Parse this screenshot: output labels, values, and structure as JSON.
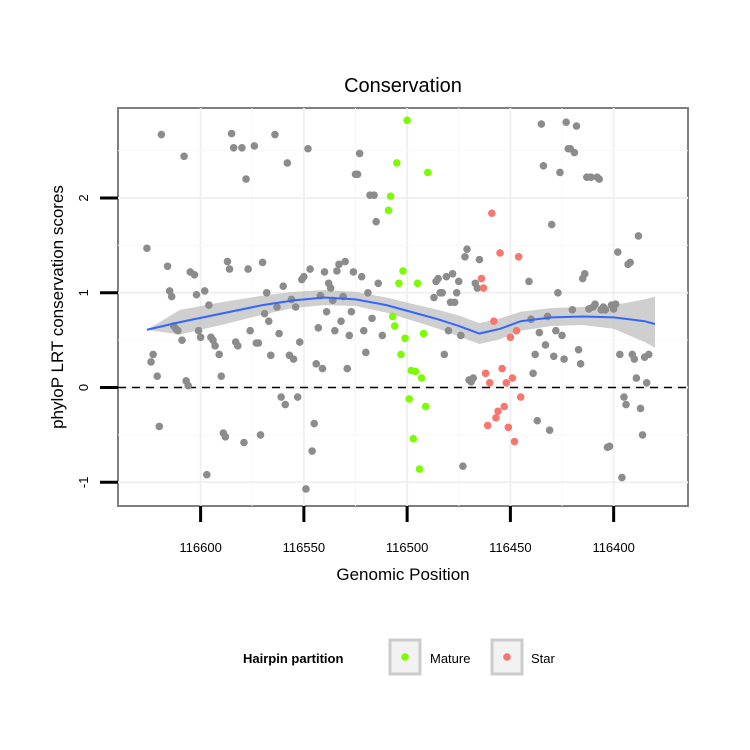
{
  "chart_data": {
    "type": "scatter",
    "title": "Conservation",
    "xlabel": "Genomic Position",
    "ylabel": "phyloP LRT conservation scores",
    "x_reversed": true,
    "xlim": [
      116640,
      116364
    ],
    "ylim": [
      -1.25,
      2.95
    ],
    "x_ticks": [
      116600,
      116550,
      116500,
      116450,
      116400
    ],
    "y_ticks": [
      -1,
      0,
      1,
      2
    ],
    "grid": true,
    "reference_line": 0,
    "legend": {
      "title": "Hairpin partition",
      "position": "bottom",
      "entries": [
        {
          "label": "Mature",
          "color": "#7cfc00"
        },
        {
          "label": "Star",
          "color": "#f8766d"
        }
      ]
    },
    "series": [
      {
        "color": "#8c8c8c",
        "points": [
          [
            116626,
            1.47
          ],
          [
            116624,
            0.27
          ],
          [
            116623,
            0.35
          ],
          [
            116621,
            0.12
          ],
          [
            116620,
            -0.41
          ],
          [
            116619,
            2.67
          ],
          [
            116616,
            1.28
          ],
          [
            116615,
            1.02
          ],
          [
            116614,
            0.96
          ],
          [
            116613,
            0.65
          ],
          [
            116612,
            0.62
          ],
          [
            116611,
            0.6
          ],
          [
            116609,
            0.5
          ],
          [
            116608,
            2.44
          ],
          [
            116607,
            0.07
          ],
          [
            116606,
            0.02
          ],
          [
            116605,
            1.22
          ],
          [
            116603,
            1.19
          ],
          [
            116602,
            0.98
          ],
          [
            116601,
            0.6
          ],
          [
            116600,
            0.53
          ],
          [
            116598,
            1.02
          ],
          [
            116597,
            -0.92
          ],
          [
            116596,
            0.87
          ],
          [
            116595,
            0.53
          ],
          [
            116594,
            0.5
          ],
          [
            116593,
            0.44
          ],
          [
            116591,
            0.35
          ],
          [
            116590,
            0.12
          ],
          [
            116589,
            -0.48
          ],
          [
            116588,
            -0.52
          ],
          [
            116587,
            1.33
          ],
          [
            116586,
            1.25
          ],
          [
            116585,
            2.68
          ],
          [
            116584,
            2.53
          ],
          [
            116583,
            0.48
          ],
          [
            116582,
            0.44
          ],
          [
            116580,
            2.53
          ],
          [
            116579,
            -0.58
          ],
          [
            116578,
            2.2
          ],
          [
            116577,
            1.25
          ],
          [
            116576,
            0.6
          ],
          [
            116574,
            2.55
          ],
          [
            116573,
            0.47
          ],
          [
            116572,
            0.47
          ],
          [
            116571,
            -0.5
          ],
          [
            116570,
            1.32
          ],
          [
            116569,
            0.78
          ],
          [
            116568,
            1.0
          ],
          [
            116567,
            0.7
          ],
          [
            116566,
            0.34
          ],
          [
            116564,
            2.67
          ],
          [
            116563,
            0.85
          ],
          [
            116562,
            0.57
          ],
          [
            116561,
            -0.1
          ],
          [
            116560,
            1.07
          ],
          [
            116559,
            -0.18
          ],
          [
            116558,
            2.37
          ],
          [
            116557,
            0.34
          ],
          [
            116556,
            0.93
          ],
          [
            116555,
            0.3
          ],
          [
            116554,
            0.85
          ],
          [
            116553,
            -0.1
          ],
          [
            116552,
            0.48
          ],
          [
            116551,
            1.14
          ],
          [
            116550,
            1.17
          ],
          [
            116549,
            -1.07
          ],
          [
            116548,
            2.52
          ],
          [
            116547,
            1.25
          ],
          [
            116546,
            -0.67
          ],
          [
            116545,
            -0.38
          ],
          [
            116544,
            0.25
          ],
          [
            116543,
            0.63
          ],
          [
            116542,
            0.97
          ],
          [
            116541,
            0.2
          ],
          [
            116540,
            1.22
          ],
          [
            116539,
            0.8
          ],
          [
            116538,
            1.1
          ],
          [
            116537,
            1.05
          ],
          [
            116536,
            0.92
          ],
          [
            116535,
            0.6
          ],
          [
            116534,
            1.23
          ],
          [
            116533,
            1.3
          ],
          [
            116532,
            0.7
          ],
          [
            116531,
            0.96
          ],
          [
            116530,
            1.33
          ],
          [
            116529,
            0.2
          ],
          [
            116528,
            0.55
          ],
          [
            116527,
            0.8
          ],
          [
            116526,
            1.22
          ],
          [
            116525,
            2.25
          ],
          [
            116524,
            2.25
          ],
          [
            116523,
            2.47
          ],
          [
            116522,
            1.17
          ],
          [
            116521,
            0.6
          ],
          [
            116520,
            0.37
          ],
          [
            116519,
            1.0
          ],
          [
            116518,
            2.03
          ],
          [
            116517,
            0.73
          ],
          [
            116516,
            2.03
          ],
          [
            116515,
            1.75
          ],
          [
            116514,
            1.1
          ],
          [
            116512,
            0.55
          ],
          [
            116487,
            0.95
          ],
          [
            116486,
            1.12
          ],
          [
            116485,
            1.15
          ],
          [
            116484,
            1.0
          ],
          [
            116483,
            1.0
          ],
          [
            116482,
            0.35
          ],
          [
            116481,
            1.17
          ],
          [
            116480,
            0.6
          ],
          [
            116479,
            0.9
          ],
          [
            116478,
            1.2
          ],
          [
            116477,
            0.9
          ],
          [
            116476,
            1.0
          ],
          [
            116475,
            1.12
          ],
          [
            116474,
            0.55
          ],
          [
            116473,
            -0.83
          ],
          [
            116472,
            1.38
          ],
          [
            116471,
            1.46
          ],
          [
            116470,
            0.08
          ],
          [
            116469,
            0.06
          ],
          [
            116468,
            0.1
          ],
          [
            116467,
            1.1
          ],
          [
            116466,
            1.05
          ],
          [
            116465,
            1.35
          ],
          [
            116441,
            1.12
          ],
          [
            116440,
            0.72
          ],
          [
            116439,
            0.15
          ],
          [
            116438,
            0.35
          ],
          [
            116437,
            -0.35
          ],
          [
            116436,
            0.58
          ],
          [
            116435,
            2.78
          ],
          [
            116434,
            2.34
          ],
          [
            116433,
            0.45
          ],
          [
            116432,
            0.75
          ],
          [
            116431,
            -0.45
          ],
          [
            116430,
            1.72
          ],
          [
            116429,
            0.33
          ],
          [
            116428,
            0.6
          ],
          [
            116427,
            1.0
          ],
          [
            116426,
            2.27
          ],
          [
            116425,
            0.55
          ],
          [
            116424,
            0.3
          ],
          [
            116423,
            2.8
          ],
          [
            116422,
            2.52
          ],
          [
            116421,
            2.52
          ],
          [
            116420,
            0.82
          ],
          [
            116419,
            2.48
          ],
          [
            116418,
            2.76
          ],
          [
            116417,
            0.4
          ],
          [
            116416,
            0.25
          ],
          [
            116415,
            1.15
          ],
          [
            116414,
            1.2
          ],
          [
            116413,
            2.22
          ],
          [
            116412,
            0.83
          ],
          [
            116411,
            2.22
          ],
          [
            116410,
            0.85
          ],
          [
            116409,
            0.88
          ],
          [
            116408,
            2.22
          ],
          [
            116407,
            2.2
          ],
          [
            116406,
            0.82
          ],
          [
            116405,
            0.85
          ],
          [
            116404,
            0.82
          ],
          [
            116403,
            -0.63
          ],
          [
            116402,
            -0.62
          ],
          [
            116401,
            0.87
          ],
          [
            116400,
            0.83
          ],
          [
            116399,
            0.88
          ],
          [
            116398,
            1.43
          ],
          [
            116397,
            0.35
          ],
          [
            116396,
            -0.95
          ],
          [
            116395,
            -0.1
          ],
          [
            116394,
            -0.18
          ],
          [
            116393,
            1.3
          ],
          [
            116392,
            1.32
          ],
          [
            116391,
            0.35
          ],
          [
            116390,
            0.3
          ],
          [
            116389,
            0.1
          ],
          [
            116388,
            1.6
          ],
          [
            116387,
            -0.22
          ],
          [
            116386,
            -0.5
          ],
          [
            116385,
            0.32
          ],
          [
            116384,
            0.05
          ],
          [
            116383,
            0.35
          ]
        ]
      },
      {
        "name": "Mature",
        "color": "#7cfc00",
        "points": [
          [
            116509,
            1.87
          ],
          [
            116508,
            2.02
          ],
          [
            116507,
            0.75
          ],
          [
            116506,
            0.65
          ],
          [
            116505,
            2.37
          ],
          [
            116504,
            1.1
          ],
          [
            116503,
            0.35
          ],
          [
            116502,
            1.23
          ],
          [
            116501,
            0.52
          ],
          [
            116500,
            2.82
          ],
          [
            116499,
            -0.12
          ],
          [
            116498,
            0.18
          ],
          [
            116497,
            -0.54
          ],
          [
            116496,
            0.17
          ],
          [
            116495,
            1.1
          ],
          [
            116494,
            -0.86
          ],
          [
            116493,
            0.1
          ],
          [
            116492,
            0.57
          ],
          [
            116491,
            -0.2
          ],
          [
            116490,
            2.27
          ]
        ]
      },
      {
        "name": "Star",
        "color": "#f8766d",
        "points": [
          [
            116464,
            1.15
          ],
          [
            116463,
            1.05
          ],
          [
            116462,
            0.15
          ],
          [
            116461,
            -0.4
          ],
          [
            116460,
            0.05
          ],
          [
            116459,
            1.84
          ],
          [
            116458,
            0.7
          ],
          [
            116457,
            -0.32
          ],
          [
            116456,
            -0.25
          ],
          [
            116455,
            1.42
          ],
          [
            116454,
            0.2
          ],
          [
            116453,
            -0.2
          ],
          [
            116452,
            0.05
          ],
          [
            116451,
            -0.42
          ],
          [
            116450,
            0.53
          ],
          [
            116449,
            0.1
          ],
          [
            116448,
            -0.57
          ],
          [
            116447,
            0.6
          ],
          [
            116446,
            1.38
          ],
          [
            116445,
            -0.1
          ]
        ]
      }
    ],
    "smooth": {
      "color": "#3366ff",
      "band_color": "#bfbfbf",
      "line": [
        [
          116626,
          0.61
        ],
        [
          116610,
          0.69
        ],
        [
          116590,
          0.78
        ],
        [
          116570,
          0.87
        ],
        [
          116555,
          0.92
        ],
        [
          116540,
          0.95
        ],
        [
          116525,
          0.93
        ],
        [
          116510,
          0.87
        ],
        [
          116495,
          0.78
        ],
        [
          116485,
          0.72
        ],
        [
          116475,
          0.65
        ],
        [
          116465,
          0.57
        ],
        [
          116455,
          0.62
        ],
        [
          116445,
          0.7
        ],
        [
          116430,
          0.74
        ],
        [
          116415,
          0.75
        ],
        [
          116400,
          0.74
        ],
        [
          116385,
          0.7
        ],
        [
          116380,
          0.67
        ]
      ],
      "lower": [
        [
          116626,
          0.61
        ],
        [
          116610,
          0.56
        ],
        [
          116590,
          0.66
        ],
        [
          116570,
          0.77
        ],
        [
          116555,
          0.84
        ],
        [
          116540,
          0.87
        ],
        [
          116525,
          0.86
        ],
        [
          116510,
          0.79
        ],
        [
          116495,
          0.69
        ],
        [
          116485,
          0.62
        ],
        [
          116475,
          0.54
        ],
        [
          116465,
          0.46
        ],
        [
          116455,
          0.51
        ],
        [
          116445,
          0.6
        ],
        [
          116430,
          0.65
        ],
        [
          116415,
          0.66
        ],
        [
          116400,
          0.62
        ],
        [
          116385,
          0.48
        ],
        [
          116380,
          0.42
        ]
      ],
      "upper": [
        [
          116626,
          0.61
        ],
        [
          116610,
          0.82
        ],
        [
          116590,
          0.9
        ],
        [
          116570,
          0.97
        ],
        [
          116555,
          1.01
        ],
        [
          116540,
          1.03
        ],
        [
          116525,
          1.01
        ],
        [
          116510,
          0.95
        ],
        [
          116495,
          0.87
        ],
        [
          116485,
          0.82
        ],
        [
          116475,
          0.76
        ],
        [
          116465,
          0.68
        ],
        [
          116455,
          0.73
        ],
        [
          116445,
          0.8
        ],
        [
          116430,
          0.84
        ],
        [
          116415,
          0.85
        ],
        [
          116400,
          0.87
        ],
        [
          116385,
          0.93
        ],
        [
          116380,
          0.96
        ]
      ]
    }
  }
}
